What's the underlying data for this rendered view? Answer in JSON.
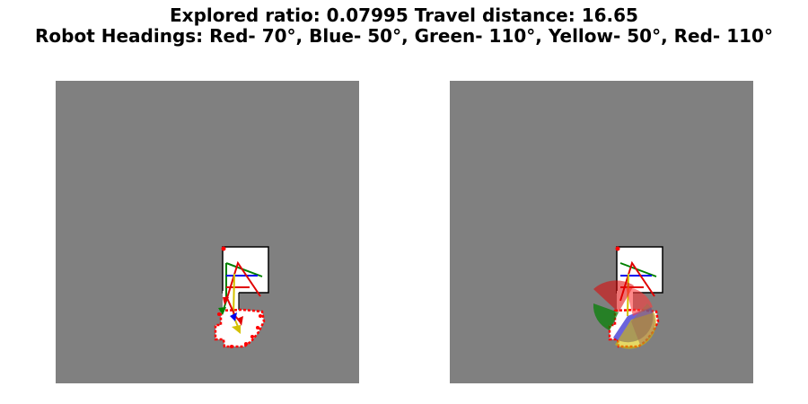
{
  "header": {
    "line1": "Explored ratio: 0.07995  Travel distance: 16.65",
    "line2": "Robot Headings: Red- 70°, Blue- 50°, Green- 110°, Yellow- 50°, Red- 110°"
  },
  "colors": {
    "background": "#808080",
    "explored": "#ffffff",
    "frontier": "#ff0000",
    "wall": "#000000",
    "robot_red": "#e00000",
    "robot_blue": "#0000ee",
    "robot_green": "#008000",
    "robot_yellow": "#d4c000"
  },
  "robots": [
    {
      "name": "Red",
      "heading_deg": 70,
      "color": "#e00000"
    },
    {
      "name": "Blue",
      "heading_deg": 50,
      "color": "#0000ee"
    },
    {
      "name": "Green",
      "heading_deg": 110,
      "color": "#008000"
    },
    {
      "name": "Yellow",
      "heading_deg": 50,
      "color": "#d4c000"
    },
    {
      "name": "Red",
      "heading_deg": 110,
      "color": "#e00000"
    }
  ]
}
